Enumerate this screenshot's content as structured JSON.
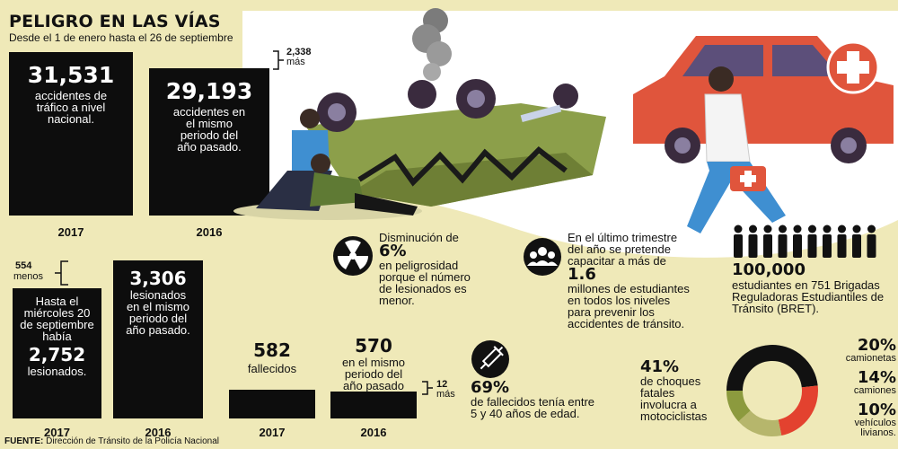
{
  "header": {
    "title": "PELIGRO EN LAS VÍAS",
    "subtitle": "Desde el 1 de enero hasta el 26 de septiembre"
  },
  "accidents": {
    "val_2017": "31,531",
    "desc_2017": [
      "accidentes de",
      "tráfico a nivel",
      "nacional."
    ],
    "val_2016": "29,193",
    "desc_2016": [
      "accidentes en",
      "el mismo",
      "periodo del",
      "año pasado."
    ],
    "diff_value": "2,338",
    "diff_label": "más",
    "year_2017": "2017",
    "year_2016": "2016"
  },
  "injured": {
    "diff_value": "554",
    "diff_label": "menos",
    "desc_2017_a": [
      "Hasta el",
      "miércoles 20",
      "de septiembre",
      "había"
    ],
    "val_2017": "2,752",
    "desc_2017_b": "lesionados.",
    "val_2016": "3,306",
    "desc_2016": [
      "lesionados",
      "en el mismo",
      "periodo del",
      "año pasado."
    ],
    "year_2017": "2017",
    "year_2016": "2016"
  },
  "deaths": {
    "val_2017": "582",
    "label_2017": "fallecidos",
    "val_2016": "570",
    "desc_2016": [
      "en el mismo",
      "periodo del",
      "año pasado"
    ],
    "diff_value": "12",
    "diff_label": "más",
    "year_2017": "2017",
    "year_2016": "2016"
  },
  "facts": {
    "danger": {
      "lead": "Disminución de",
      "pct": "6%",
      "lines": [
        "en peligrosidad",
        "porque el número",
        "de lesionados es",
        "menor."
      ]
    },
    "training": {
      "lines_a": [
        "En el último trimestre",
        "del año se pretende",
        "capacitar a más de"
      ],
      "num": "1.6",
      "lines_b": [
        "millones de estudiantes",
        "en todos los niveles",
        "para prevenir los",
        "accidentes de tránsito."
      ]
    },
    "students": {
      "num": "100,000",
      "lines": [
        "estudiantes en 751 Brigadas",
        "Reguladoras Estudiantiles de",
        "Tránsito (BRET)."
      ]
    },
    "age": {
      "pct": "69%",
      "lines": [
        "de fallecidos tenía entre",
        "5 y 40 años de edad."
      ]
    }
  },
  "vehicles": {
    "moto_pct": "41%",
    "moto_lines": [
      "de choques",
      "fatales",
      "involucra a",
      "motociclistas"
    ],
    "segments": [
      {
        "label": "camionetas",
        "pct": "20%"
      },
      {
        "label": "camiones",
        "pct": "14%"
      },
      {
        "label": "vehículos livianos.",
        "pct": "10%"
      }
    ]
  },
  "source": {
    "label": "FUENTE:",
    "text": "Dirección de Tránsito de la Policía Nacional"
  },
  "icons": [
    "radiation-icon",
    "people-group-icon",
    "syringe-icon",
    "first-aid-case-icon",
    "students-icon"
  ],
  "chart_data": [
    {
      "type": "bar",
      "title": "",
      "categories": [
        "2017",
        "2016"
      ],
      "values": [
        31531,
        29193
      ]
    },
    {
      "type": "bar",
      "title": "",
      "categories": [
        "2017",
        "2016"
      ],
      "values": [
        2752,
        3306
      ]
    },
    {
      "type": "bar",
      "title": "",
      "categories": [
        "2017",
        "2016"
      ],
      "values": [
        582,
        570
      ]
    },
    {
      "type": "pie",
      "title": "",
      "categories": [
        "motocicletas",
        "camionetas",
        "camiones",
        "vehículos livianos"
      ],
      "values": [
        41,
        20,
        14,
        10
      ],
      "colors": [
        "#111111",
        "#e3422f",
        "#b6b66c",
        "#8c9a3e"
      ]
    }
  ]
}
